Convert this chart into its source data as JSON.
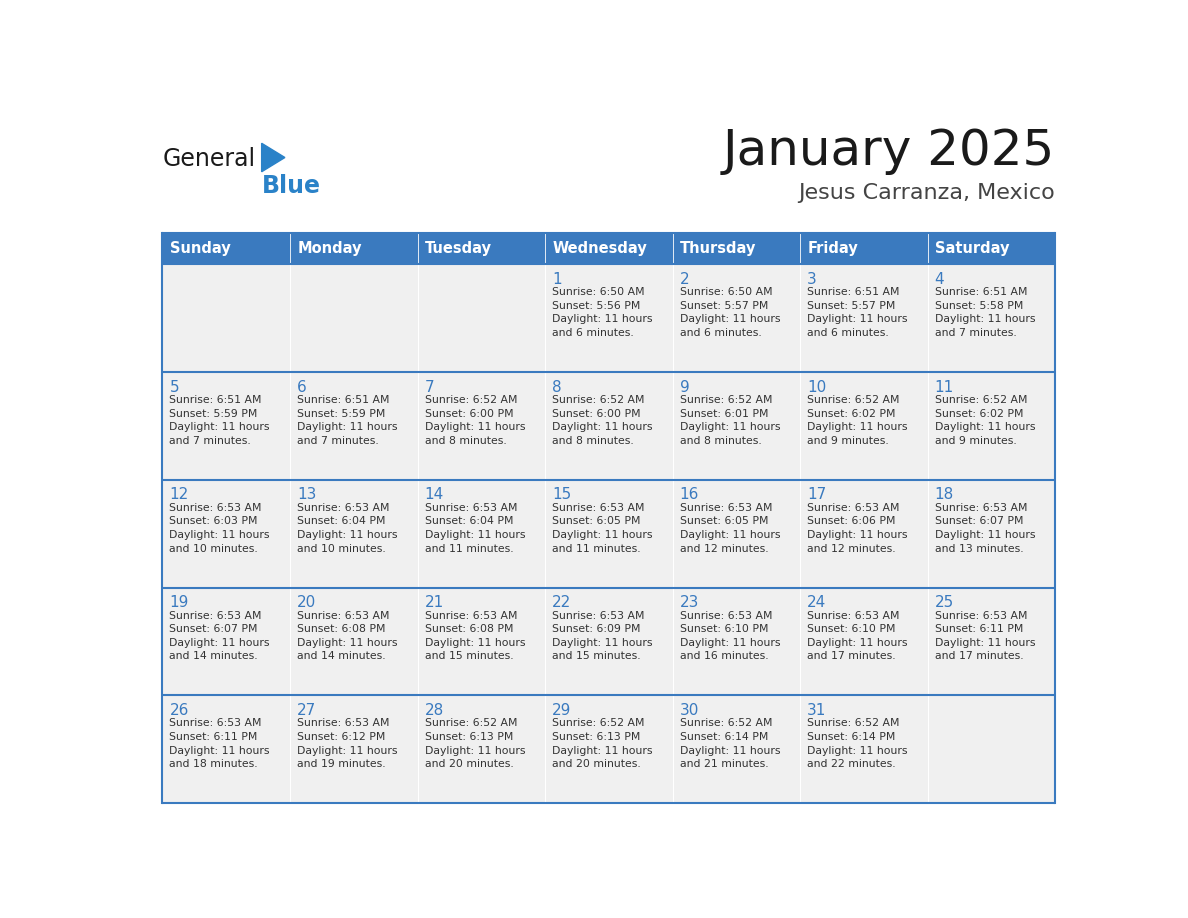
{
  "title": "January 2025",
  "subtitle": "Jesus Carranza, Mexico",
  "days_of_week": [
    "Sunday",
    "Monday",
    "Tuesday",
    "Wednesday",
    "Thursday",
    "Friday",
    "Saturday"
  ],
  "header_bg": "#3a7abf",
  "header_text": "#ffffff",
  "cell_bg": "#f0f0f0",
  "border_color": "#3a7abf",
  "day_num_color": "#3a7abf",
  "cell_text_color": "#333333",
  "title_color": "#1a1a1a",
  "subtitle_color": "#444444",
  "logo_general_color": "#1a1a1a",
  "logo_blue_color": "#2a82c8",
  "calendar": [
    [
      {
        "day": 0,
        "text": ""
      },
      {
        "day": 0,
        "text": ""
      },
      {
        "day": 0,
        "text": ""
      },
      {
        "day": 1,
        "text": "Sunrise: 6:50 AM\nSunset: 5:56 PM\nDaylight: 11 hours\nand 6 minutes."
      },
      {
        "day": 2,
        "text": "Sunrise: 6:50 AM\nSunset: 5:57 PM\nDaylight: 11 hours\nand 6 minutes."
      },
      {
        "day": 3,
        "text": "Sunrise: 6:51 AM\nSunset: 5:57 PM\nDaylight: 11 hours\nand 6 minutes."
      },
      {
        "day": 4,
        "text": "Sunrise: 6:51 AM\nSunset: 5:58 PM\nDaylight: 11 hours\nand 7 minutes."
      }
    ],
    [
      {
        "day": 5,
        "text": "Sunrise: 6:51 AM\nSunset: 5:59 PM\nDaylight: 11 hours\nand 7 minutes."
      },
      {
        "day": 6,
        "text": "Sunrise: 6:51 AM\nSunset: 5:59 PM\nDaylight: 11 hours\nand 7 minutes."
      },
      {
        "day": 7,
        "text": "Sunrise: 6:52 AM\nSunset: 6:00 PM\nDaylight: 11 hours\nand 8 minutes."
      },
      {
        "day": 8,
        "text": "Sunrise: 6:52 AM\nSunset: 6:00 PM\nDaylight: 11 hours\nand 8 minutes."
      },
      {
        "day": 9,
        "text": "Sunrise: 6:52 AM\nSunset: 6:01 PM\nDaylight: 11 hours\nand 8 minutes."
      },
      {
        "day": 10,
        "text": "Sunrise: 6:52 AM\nSunset: 6:02 PM\nDaylight: 11 hours\nand 9 minutes."
      },
      {
        "day": 11,
        "text": "Sunrise: 6:52 AM\nSunset: 6:02 PM\nDaylight: 11 hours\nand 9 minutes."
      }
    ],
    [
      {
        "day": 12,
        "text": "Sunrise: 6:53 AM\nSunset: 6:03 PM\nDaylight: 11 hours\nand 10 minutes."
      },
      {
        "day": 13,
        "text": "Sunrise: 6:53 AM\nSunset: 6:04 PM\nDaylight: 11 hours\nand 10 minutes."
      },
      {
        "day": 14,
        "text": "Sunrise: 6:53 AM\nSunset: 6:04 PM\nDaylight: 11 hours\nand 11 minutes."
      },
      {
        "day": 15,
        "text": "Sunrise: 6:53 AM\nSunset: 6:05 PM\nDaylight: 11 hours\nand 11 minutes."
      },
      {
        "day": 16,
        "text": "Sunrise: 6:53 AM\nSunset: 6:05 PM\nDaylight: 11 hours\nand 12 minutes."
      },
      {
        "day": 17,
        "text": "Sunrise: 6:53 AM\nSunset: 6:06 PM\nDaylight: 11 hours\nand 12 minutes."
      },
      {
        "day": 18,
        "text": "Sunrise: 6:53 AM\nSunset: 6:07 PM\nDaylight: 11 hours\nand 13 minutes."
      }
    ],
    [
      {
        "day": 19,
        "text": "Sunrise: 6:53 AM\nSunset: 6:07 PM\nDaylight: 11 hours\nand 14 minutes."
      },
      {
        "day": 20,
        "text": "Sunrise: 6:53 AM\nSunset: 6:08 PM\nDaylight: 11 hours\nand 14 minutes."
      },
      {
        "day": 21,
        "text": "Sunrise: 6:53 AM\nSunset: 6:08 PM\nDaylight: 11 hours\nand 15 minutes."
      },
      {
        "day": 22,
        "text": "Sunrise: 6:53 AM\nSunset: 6:09 PM\nDaylight: 11 hours\nand 15 minutes."
      },
      {
        "day": 23,
        "text": "Sunrise: 6:53 AM\nSunset: 6:10 PM\nDaylight: 11 hours\nand 16 minutes."
      },
      {
        "day": 24,
        "text": "Sunrise: 6:53 AM\nSunset: 6:10 PM\nDaylight: 11 hours\nand 17 minutes."
      },
      {
        "day": 25,
        "text": "Sunrise: 6:53 AM\nSunset: 6:11 PM\nDaylight: 11 hours\nand 17 minutes."
      }
    ],
    [
      {
        "day": 26,
        "text": "Sunrise: 6:53 AM\nSunset: 6:11 PM\nDaylight: 11 hours\nand 18 minutes."
      },
      {
        "day": 27,
        "text": "Sunrise: 6:53 AM\nSunset: 6:12 PM\nDaylight: 11 hours\nand 19 minutes."
      },
      {
        "day": 28,
        "text": "Sunrise: 6:52 AM\nSunset: 6:13 PM\nDaylight: 11 hours\nand 20 minutes."
      },
      {
        "day": 29,
        "text": "Sunrise: 6:52 AM\nSunset: 6:13 PM\nDaylight: 11 hours\nand 20 minutes."
      },
      {
        "day": 30,
        "text": "Sunrise: 6:52 AM\nSunset: 6:14 PM\nDaylight: 11 hours\nand 21 minutes."
      },
      {
        "day": 31,
        "text": "Sunrise: 6:52 AM\nSunset: 6:14 PM\nDaylight: 11 hours\nand 22 minutes."
      },
      {
        "day": 0,
        "text": ""
      }
    ]
  ]
}
